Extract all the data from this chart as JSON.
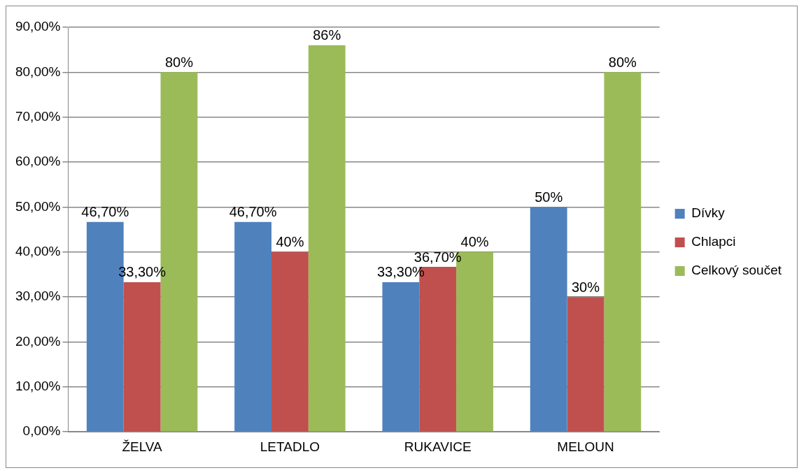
{
  "chart_data": {
    "type": "bar",
    "categories": [
      "ŽELVA",
      "LETADLO",
      "RUKAVICE",
      "MELOUN"
    ],
    "series": [
      {
        "name": "Dívky",
        "color": "#4f81bd",
        "values": [
          46.7,
          46.7,
          33.3,
          50
        ],
        "value_labels": [
          "46,70%",
          "46,70%",
          "33,30%",
          "50%"
        ]
      },
      {
        "name": "Chlapci",
        "color": "#c0504d",
        "values": [
          33.3,
          40,
          36.7,
          30
        ],
        "value_labels": [
          "33,30%",
          "40%",
          "36,70%",
          "30%"
        ]
      },
      {
        "name": "Celkový součet",
        "color": "#9bbb59",
        "values": [
          80,
          86,
          40,
          80
        ],
        "value_labels": [
          "80%",
          "86%",
          "40%",
          "80%"
        ]
      }
    ],
    "ylim": [
      0,
      90
    ],
    "yticks": [
      {
        "value": 0,
        "label": "0,00%"
      },
      {
        "value": 10,
        "label": "10,00%"
      },
      {
        "value": 20,
        "label": "20,00%"
      },
      {
        "value": 30,
        "label": "30,00%"
      },
      {
        "value": 40,
        "label": "40,00%"
      },
      {
        "value": 50,
        "label": "50,00%"
      },
      {
        "value": 60,
        "label": "60,00%"
      },
      {
        "value": 70,
        "label": "70,00%"
      },
      {
        "value": 80,
        "label": "80,00%"
      },
      {
        "value": 90,
        "label": "90,00%"
      }
    ],
    "grid": "y",
    "legend": "right"
  }
}
